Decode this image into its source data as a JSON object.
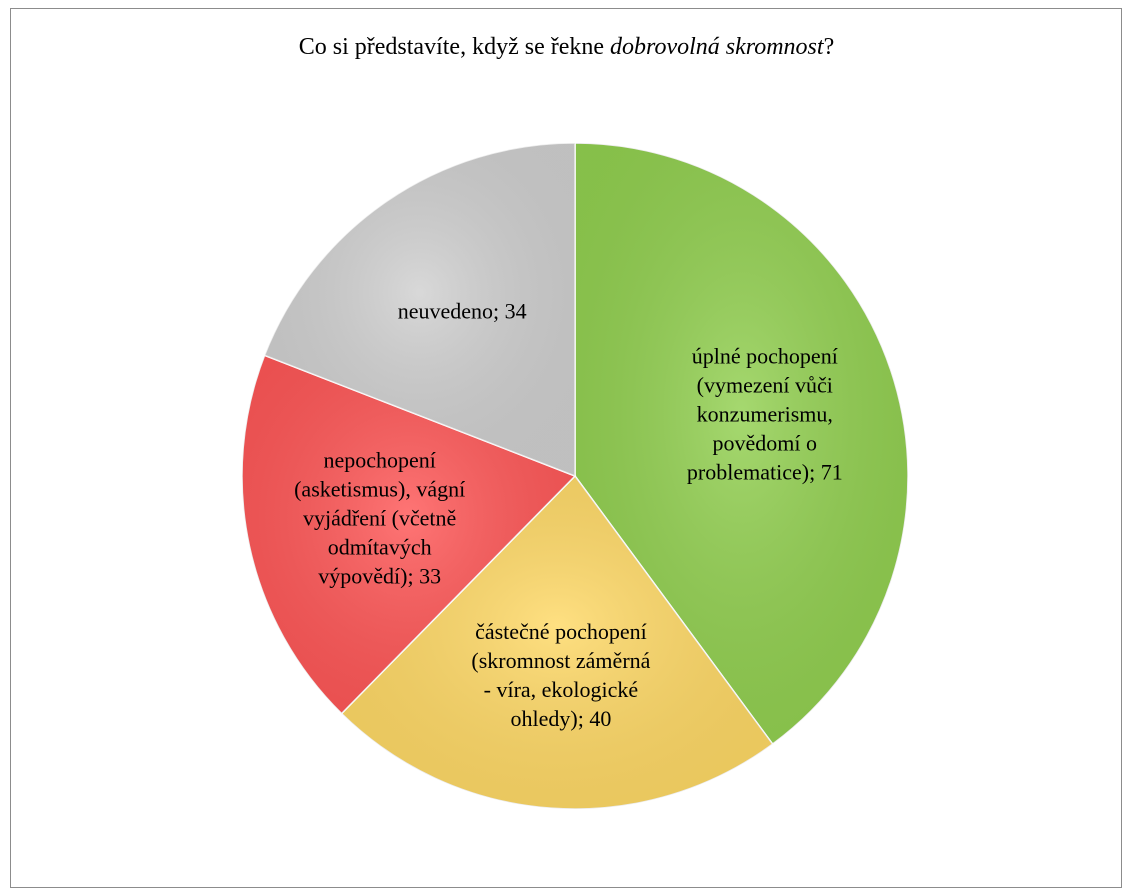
{
  "chart_data": {
    "type": "pie",
    "title": [
      "Co si představíte, když se řekne ",
      "dobrovolná skromnost",
      "?"
    ],
    "categories": [
      "úplné pochopení (vymezení vůči konzumerismu, povědomí o problematice)",
      "částečné pochopení (skromnost záměrná - víra, ekologické ohledy)",
      "nepochopení (asketismus), vágní vyjádření (včetně odmítavých výpovědí)",
      "neuvedeno"
    ],
    "values": [
      71,
      40,
      33,
      34
    ],
    "label_separator": "; ",
    "colors": [
      "#92d050",
      "#ffd966",
      "#ff5757",
      "#d0d0d0"
    ]
  }
}
